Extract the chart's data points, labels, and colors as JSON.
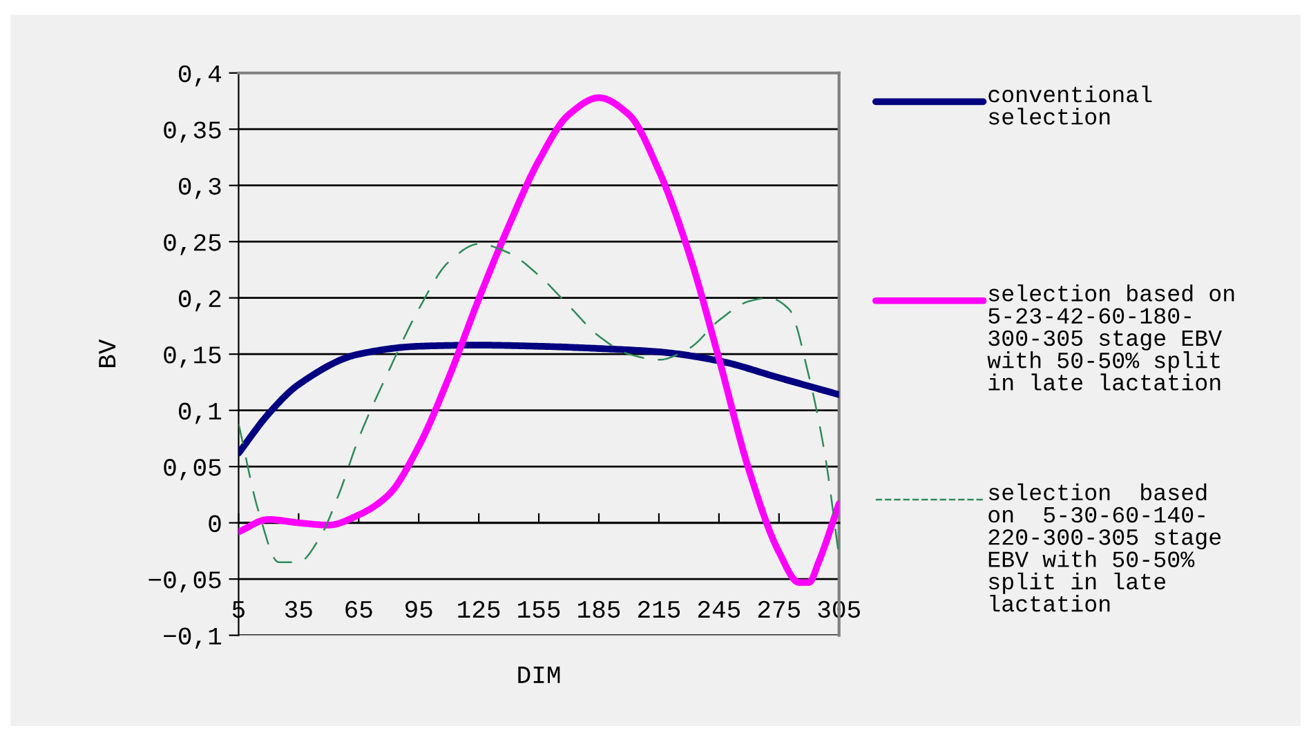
{
  "chart_data": {
    "type": "line",
    "xlabel": "DIM",
    "ylabel": "BV",
    "xlim": [
      5,
      305
    ],
    "xticks": [
      5,
      35,
      65,
      95,
      125,
      155,
      185,
      215,
      245,
      275,
      305
    ],
    "ylim": [
      -0.1,
      0.4
    ],
    "yticks": [
      {
        "value": -0.1,
        "label": "−0,1"
      },
      {
        "value": -0.05,
        "label": "−0,05"
      },
      {
        "value": 0,
        "label": "0"
      },
      {
        "value": 0.05,
        "label": "0,05"
      },
      {
        "value": 0.1,
        "label": "0,1"
      },
      {
        "value": 0.15,
        "label": "0,15"
      },
      {
        "value": 0.2,
        "label": "0,2"
      },
      {
        "value": 0.25,
        "label": "0,25"
      },
      {
        "value": 0.3,
        "label": "0,3"
      },
      {
        "value": 0.35,
        "label": "0,35"
      },
      {
        "value": 0.4,
        "label": "0,4"
      }
    ],
    "grid": "y",
    "legend": "right",
    "series": [
      {
        "name": "conventional\nselection",
        "color": "#000080",
        "line_style": "solid",
        "x": [
          5,
          20,
          35,
          65,
          95,
          125,
          155,
          185,
          215,
          245,
          275,
          305
        ],
        "values": [
          0.062,
          0.097,
          0.123,
          0.15,
          0.157,
          0.158,
          0.157,
          0.155,
          0.152,
          0.144,
          0.129,
          0.114
        ]
      },
      {
        "name": "selection based on\n5-23-42-60-180-\n300-305 stage EBV\nwith 50-50% split\nin late lactation",
        "color": "#ff00ff",
        "line_style": "solid",
        "x": [
          5,
          20,
          35,
          50,
          65,
          80,
          95,
          110,
          125,
          140,
          155,
          170,
          185,
          200,
          215,
          230,
          245,
          260,
          275,
          285,
          290,
          295,
          305
        ],
        "values": [
          -0.008,
          0.003,
          0.0,
          -0.002,
          0.007,
          0.025,
          0.068,
          0.129,
          0.199,
          0.264,
          0.322,
          0.363,
          0.378,
          0.363,
          0.313,
          0.24,
          0.146,
          0.047,
          -0.026,
          -0.053,
          -0.053,
          -0.034,
          0.017
        ]
      },
      {
        "name": "selection  based\non  5-30-60-140-\n220-300-305 stage\nEBV with 50-50%\nsplit in late\nlactation",
        "color": "#2e8b57",
        "line_style": "dashed",
        "x": [
          5,
          15,
          25,
          35,
          45,
          55,
          65,
          80,
          95,
          110,
          125,
          140,
          155,
          170,
          185,
          200,
          215,
          230,
          245,
          260,
          270,
          280,
          290,
          298,
          305
        ],
        "values": [
          0.088,
          0.01,
          -0.035,
          -0.035,
          -0.015,
          0.025,
          0.075,
          0.135,
          0.19,
          0.232,
          0.248,
          0.24,
          0.22,
          0.193,
          0.166,
          0.15,
          0.145,
          0.155,
          0.18,
          0.197,
          0.2,
          0.19,
          0.13,
          0.06,
          -0.03
        ]
      }
    ]
  }
}
